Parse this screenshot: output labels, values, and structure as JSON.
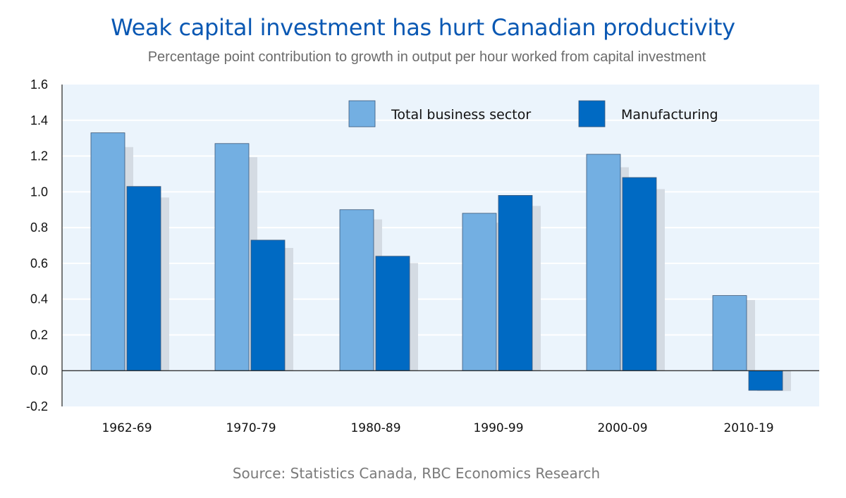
{
  "title": "Weak capital investment has hurt Canadian productivity",
  "subtitle": "Percentage point contribution to growth in output per hour worked from capital investment",
  "source": "Source: Statistics Canada, RBC Economics Research",
  "colors": {
    "background": "#ffffff",
    "plot_background": "#ebf4fc",
    "gridline": "#ffffff",
    "axis": "#222222",
    "shadow": "#d4dbe3",
    "total": "#73afe2",
    "manufacturing": "#006ac3"
  },
  "chart_data": {
    "type": "bar",
    "title": "Weak capital investment has hurt Canadian productivity",
    "subtitle": "Percentage point contribution to growth in output per hour worked from capital investment",
    "xlabel": "",
    "ylabel": "",
    "ylim": [
      -0.2,
      1.6
    ],
    "yticks": [
      1.6,
      1.4,
      1.2,
      1.0,
      0.8,
      0.6,
      0.4,
      0.2,
      0.0,
      -0.2
    ],
    "ytick_labels": [
      "1.6",
      "1.4",
      "1.2",
      "1.0",
      "0.8",
      "0.6",
      "0.4",
      "0.2",
      "0.0",
      "-0.2"
    ],
    "grid": true,
    "legend_position": "top-right",
    "categories": [
      "1962-69",
      "1970-79",
      "1980-89",
      "1990-99",
      "2000-09",
      "2010-19"
    ],
    "series": [
      {
        "name": "Total business sector",
        "color": "#73afe2",
        "values": [
          1.33,
          1.27,
          0.9,
          0.88,
          1.21,
          0.42
        ]
      },
      {
        "name": "Manufacturing",
        "color": "#006ac3",
        "values": [
          1.03,
          0.73,
          0.64,
          0.98,
          1.08,
          -0.11
        ]
      }
    ]
  }
}
